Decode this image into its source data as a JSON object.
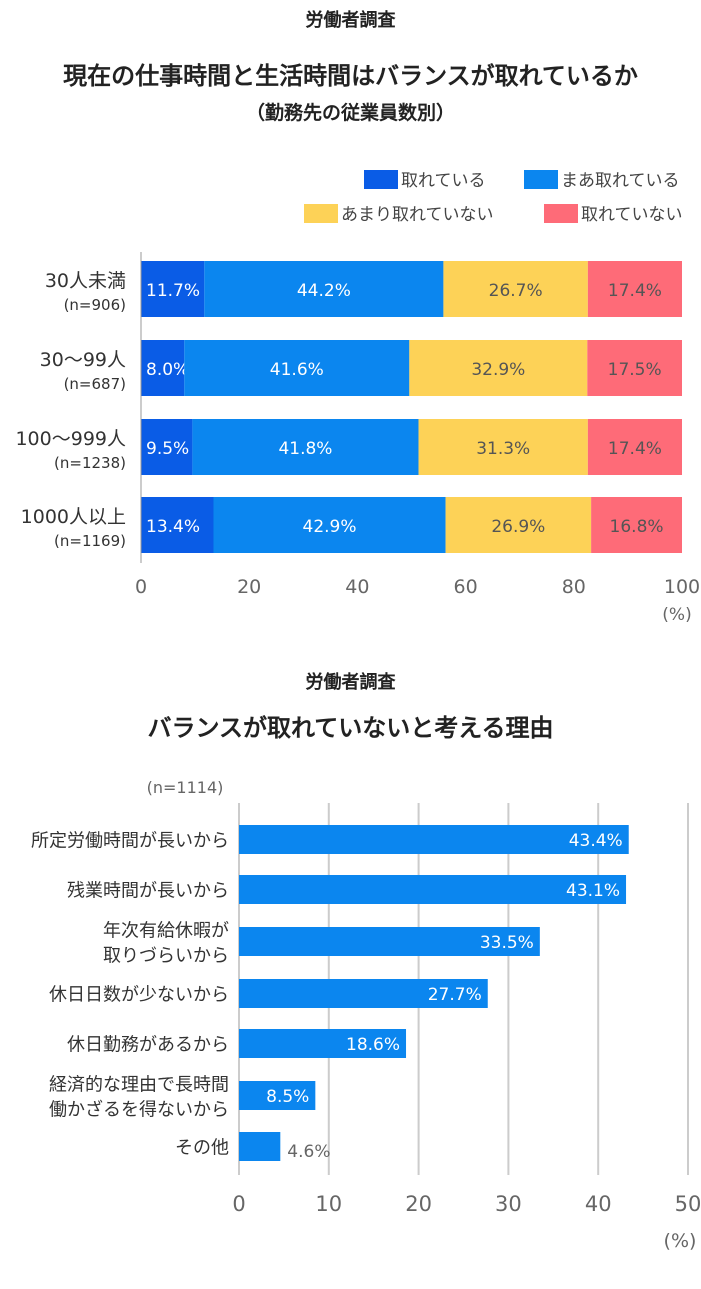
{
  "chart1": {
    "survey": "労働者調査",
    "title": "現在の仕事時間と生活時間はバランスが取れているか",
    "subtitle": "（勤務先の従業員数別）",
    "unit": "(%)",
    "legend": [
      "取れている",
      "まあ取れている",
      "あまり取れていない",
      "取れていない"
    ],
    "colors": [
      "#0a5ce6",
      "#0b86ef",
      "#fdd257",
      "#fe6b78"
    ]
  },
  "chart2": {
    "survey": "労働者調査",
    "title": "バランスが取れていないと考える理由",
    "n_label": "(n=1114)",
    "unit": "(%)",
    "color": "#0b86ef"
  },
  "chart_data": [
    {
      "type": "bar",
      "orientation": "horizontal",
      "stacked": true,
      "title": "現在の仕事時間と生活時間はバランスが取れているか",
      "subtitle": "（勤務先の従業員数別）",
      "categories": [
        {
          "label": "30人未満",
          "n": "(n=906)"
        },
        {
          "label": "30〜99人",
          "n": "(n=687)"
        },
        {
          "label": "100〜999人",
          "n": "(n=1238)"
        },
        {
          "label": "1000人以上",
          "n": "(n=1169)"
        }
      ],
      "series": [
        {
          "name": "取れている",
          "values": [
            11.7,
            8.0,
            9.5,
            13.4
          ]
        },
        {
          "name": "まあ取れている",
          "values": [
            44.2,
            41.6,
            41.8,
            42.9
          ]
        },
        {
          "name": "あまり取れていない",
          "values": [
            26.7,
            32.9,
            31.3,
            26.9
          ]
        },
        {
          "name": "取れていない",
          "values": [
            17.4,
            17.5,
            17.4,
            16.8
          ]
        }
      ],
      "xlim": [
        0,
        100
      ],
      "xticks": [
        0,
        20,
        40,
        60,
        80,
        100
      ],
      "xunit": "(%)",
      "legend_position": "top-right",
      "grid": false
    },
    {
      "type": "bar",
      "orientation": "horizontal",
      "title": "バランスが取れていないと考える理由",
      "n_label": "(n=1114)",
      "categories": [
        [
          "所定労働時間が長いから"
        ],
        [
          "残業時間が長いから"
        ],
        [
          "年次有給休暇が",
          "取りづらいから"
        ],
        [
          "休日日数が少ないから"
        ],
        [
          "休日勤務があるから"
        ],
        [
          "経済的な理由で長時間",
          "働かざるを得ないから"
        ],
        [
          "その他"
        ]
      ],
      "values": [
        43.4,
        43.1,
        33.5,
        27.7,
        18.6,
        8.5,
        4.6
      ],
      "xlim": [
        0,
        50
      ],
      "xticks": [
        0,
        10,
        20,
        30,
        40,
        50
      ],
      "xunit": "(%)",
      "grid": true
    }
  ]
}
